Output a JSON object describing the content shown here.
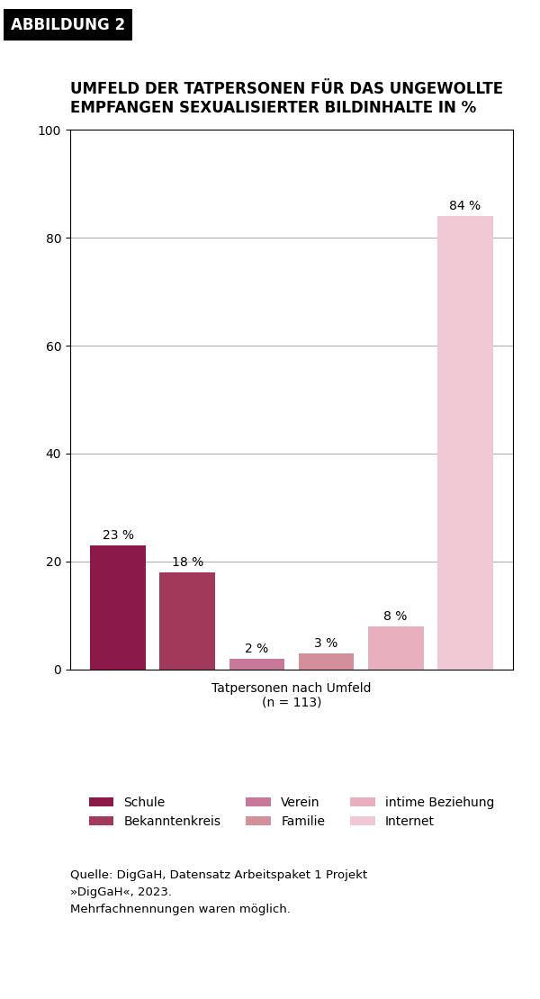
{
  "chart_data": {
    "type": "bar",
    "title": "UMFELD DER TATPERSONEN FÜR DAS UNGEWOLLTE\nEMPFANGEN SEXUALISIERTER BILDINHALTE IN %",
    "x_label": "Tatpersonen nach Umfeld\n(n = 113)",
    "categories": [
      "Schule",
      "Bekanntenkreis",
      "Verein",
      "Familie",
      "intime Beziehung",
      "Internet"
    ],
    "values": [
      23,
      18,
      2,
      3,
      8,
      84
    ],
    "value_labels": [
      "23 %",
      "18 %",
      "2 %",
      "3 %",
      "8 %",
      "84 %"
    ],
    "colors": [
      "#8B1A4A",
      "#A0395A",
      "#C87898",
      "#D4909A",
      "#E8B0BE",
      "#F0C8D4"
    ],
    "ylim": [
      0,
      100
    ],
    "yticks": [
      0,
      20,
      40,
      60,
      80,
      100
    ],
    "grid": true,
    "data_labels": true,
    "tick_labels": "y",
    "legend": "lower center",
    "annotations": [
      "ABBILDUNG 2",
      "Quelle: DigGaH, Datensatz Arbeitspaket 1 Projekt\n»DigGaH«, 2023.\nMehrfachnennungen waren möglich."
    ]
  }
}
